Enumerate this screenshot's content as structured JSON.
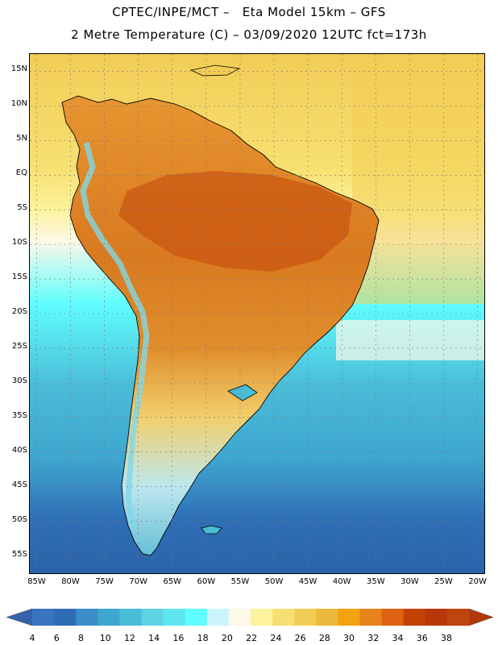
{
  "header": {
    "line1": "CPTEC/INPE/MCT –   Eta Model 15km – GFS",
    "line2": "2 Metre Temperature (C) – 03/09/2020 12UTC fct=173h"
  },
  "map": {
    "lat_labels": [
      "15N",
      "10N",
      "5N",
      "EQ",
      "5S",
      "10S",
      "15S",
      "20S",
      "25S",
      "30S",
      "35S",
      "40S",
      "45S",
      "50S",
      "55S"
    ],
    "lon_labels": [
      "85W",
      "80W",
      "75W",
      "70W",
      "65W",
      "60W",
      "55W",
      "50W",
      "45W",
      "40W",
      "35W",
      "30W",
      "25W",
      "20W"
    ],
    "lon_range": [
      -86,
      -19
    ],
    "lat_range": [
      -57.5,
      17.5
    ]
  },
  "colorbar": {
    "labels": [
      "4",
      "6",
      "8",
      "10",
      "12",
      "14",
      "16",
      "18",
      "20",
      "22",
      "24",
      "26",
      "28",
      "30",
      "32",
      "34",
      "36",
      "38"
    ],
    "colors": [
      "#3a74c0",
      "#2e6db5",
      "#3b8ec7",
      "#3ea6cf",
      "#4abcd8",
      "#5fd2e2",
      "#5ee6ee",
      "#60fefe",
      "#ccf4fc",
      "#fdf8e8",
      "#fcf39c",
      "#f7e071",
      "#f2cd56",
      "#ebb93c",
      "#f3a30f",
      "#e8841c",
      "#de6212",
      "#c44106",
      "#b73709",
      "#c0440d"
    ],
    "left_arrow_color": "#3463a8",
    "right_arrow_color": "#b0380c"
  }
}
